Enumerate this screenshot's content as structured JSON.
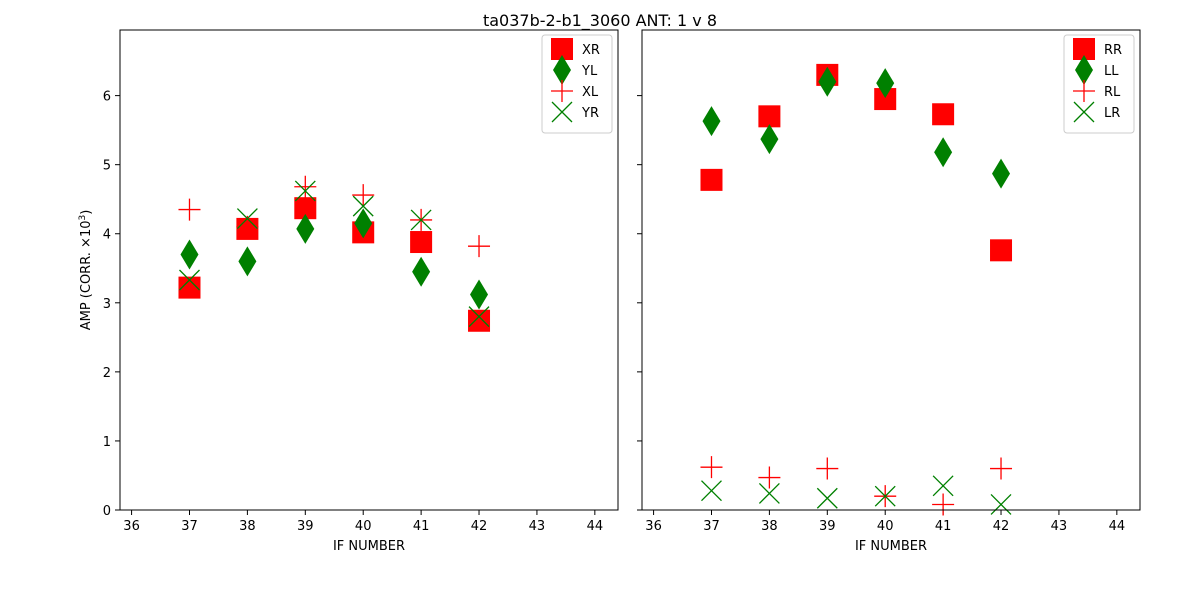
{
  "chart_data": {
    "type": "scatter",
    "title": "ta037b-2-b1_3060 ANT: 1 v 8",
    "ylabel_prefix": "AMP (CORR. ×10",
    "ylabel_exp": "3",
    "ylabel_suffix": ")",
    "ylim": [
      0,
      6.95
    ],
    "xlim": [
      35.8,
      44.4
    ],
    "yticks": [
      0,
      1,
      2,
      3,
      4,
      5,
      6
    ],
    "xticks": [
      36,
      37,
      38,
      39,
      40,
      41,
      42,
      43,
      44
    ],
    "x": [
      37,
      38,
      39,
      40,
      41,
      42
    ],
    "panels": [
      {
        "xlabel": "IF NUMBER",
        "legend_position": "top-right",
        "series": [
          {
            "name": "XR",
            "marker": "square",
            "color": "#ff0000",
            "values": [
              3.22,
              4.07,
              4.37,
              4.02,
              3.88,
              2.74
            ]
          },
          {
            "name": "YL",
            "marker": "diamond",
            "color": "#008000",
            "values": [
              3.7,
              3.6,
              4.07,
              4.15,
              3.45,
              3.12
            ]
          },
          {
            "name": "XL",
            "marker": "plus",
            "color": "#ff0000",
            "values": [
              4.35,
              4.1,
              4.68,
              4.56,
              4.2,
              3.82
            ]
          },
          {
            "name": "YR",
            "marker": "x",
            "color": "#008000",
            "values": [
              3.33,
              4.22,
              4.62,
              4.4,
              4.2,
              2.8
            ]
          }
        ]
      },
      {
        "xlabel": "IF NUMBER",
        "legend_position": "top-right",
        "series": [
          {
            "name": "RR",
            "marker": "square",
            "color": "#ff0000",
            "values": [
              4.78,
              5.7,
              6.3,
              5.95,
              5.73,
              3.76
            ]
          },
          {
            "name": "LL",
            "marker": "diamond",
            "color": "#008000",
            "values": [
              5.63,
              5.37,
              6.2,
              6.18,
              5.18,
              4.87
            ]
          },
          {
            "name": "RL",
            "marker": "plus",
            "color": "#ff0000",
            "values": [
              0.62,
              0.47,
              0.6,
              0.2,
              0.08,
              0.6
            ]
          },
          {
            "name": "LR",
            "marker": "x",
            "color": "#008000",
            "values": [
              0.28,
              0.24,
              0.17,
              0.2,
              0.35,
              0.08
            ]
          }
        ]
      }
    ]
  }
}
